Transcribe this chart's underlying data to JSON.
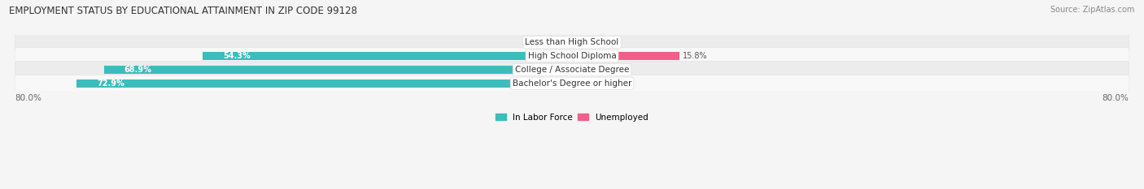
{
  "title": "EMPLOYMENT STATUS BY EDUCATIONAL ATTAINMENT IN ZIP CODE 99128",
  "source": "Source: ZipAtlas.com",
  "categories": [
    "Less than High School",
    "High School Diploma",
    "College / Associate Degree",
    "Bachelor's Degree or higher"
  ],
  "labor_force": [
    0.0,
    54.3,
    68.9,
    72.9
  ],
  "unemployed": [
    0.0,
    15.8,
    0.0,
    0.0
  ],
  "unemployed_shown": [
    2.0,
    15.8,
    2.0,
    2.0
  ],
  "labor_shown": [
    2.0,
    54.3,
    68.9,
    72.9
  ],
  "xlim": 82.0,
  "color_labor": "#3DBCBC",
  "color_labor_faint": "#C8EBEB",
  "color_unemployed": "#F0608A",
  "color_unemployed_faint": "#F5B8CC",
  "row_colors": [
    "#ECECEC",
    "#F8F8F8",
    "#ECECEC",
    "#F8F8F8"
  ],
  "background_color": "#F5F5F5",
  "title_fontsize": 8.5,
  "label_fontsize": 7.5,
  "pct_fontsize": 7.0,
  "tick_fontsize": 7.5,
  "source_fontsize": 7.0,
  "bar_height": 0.58
}
